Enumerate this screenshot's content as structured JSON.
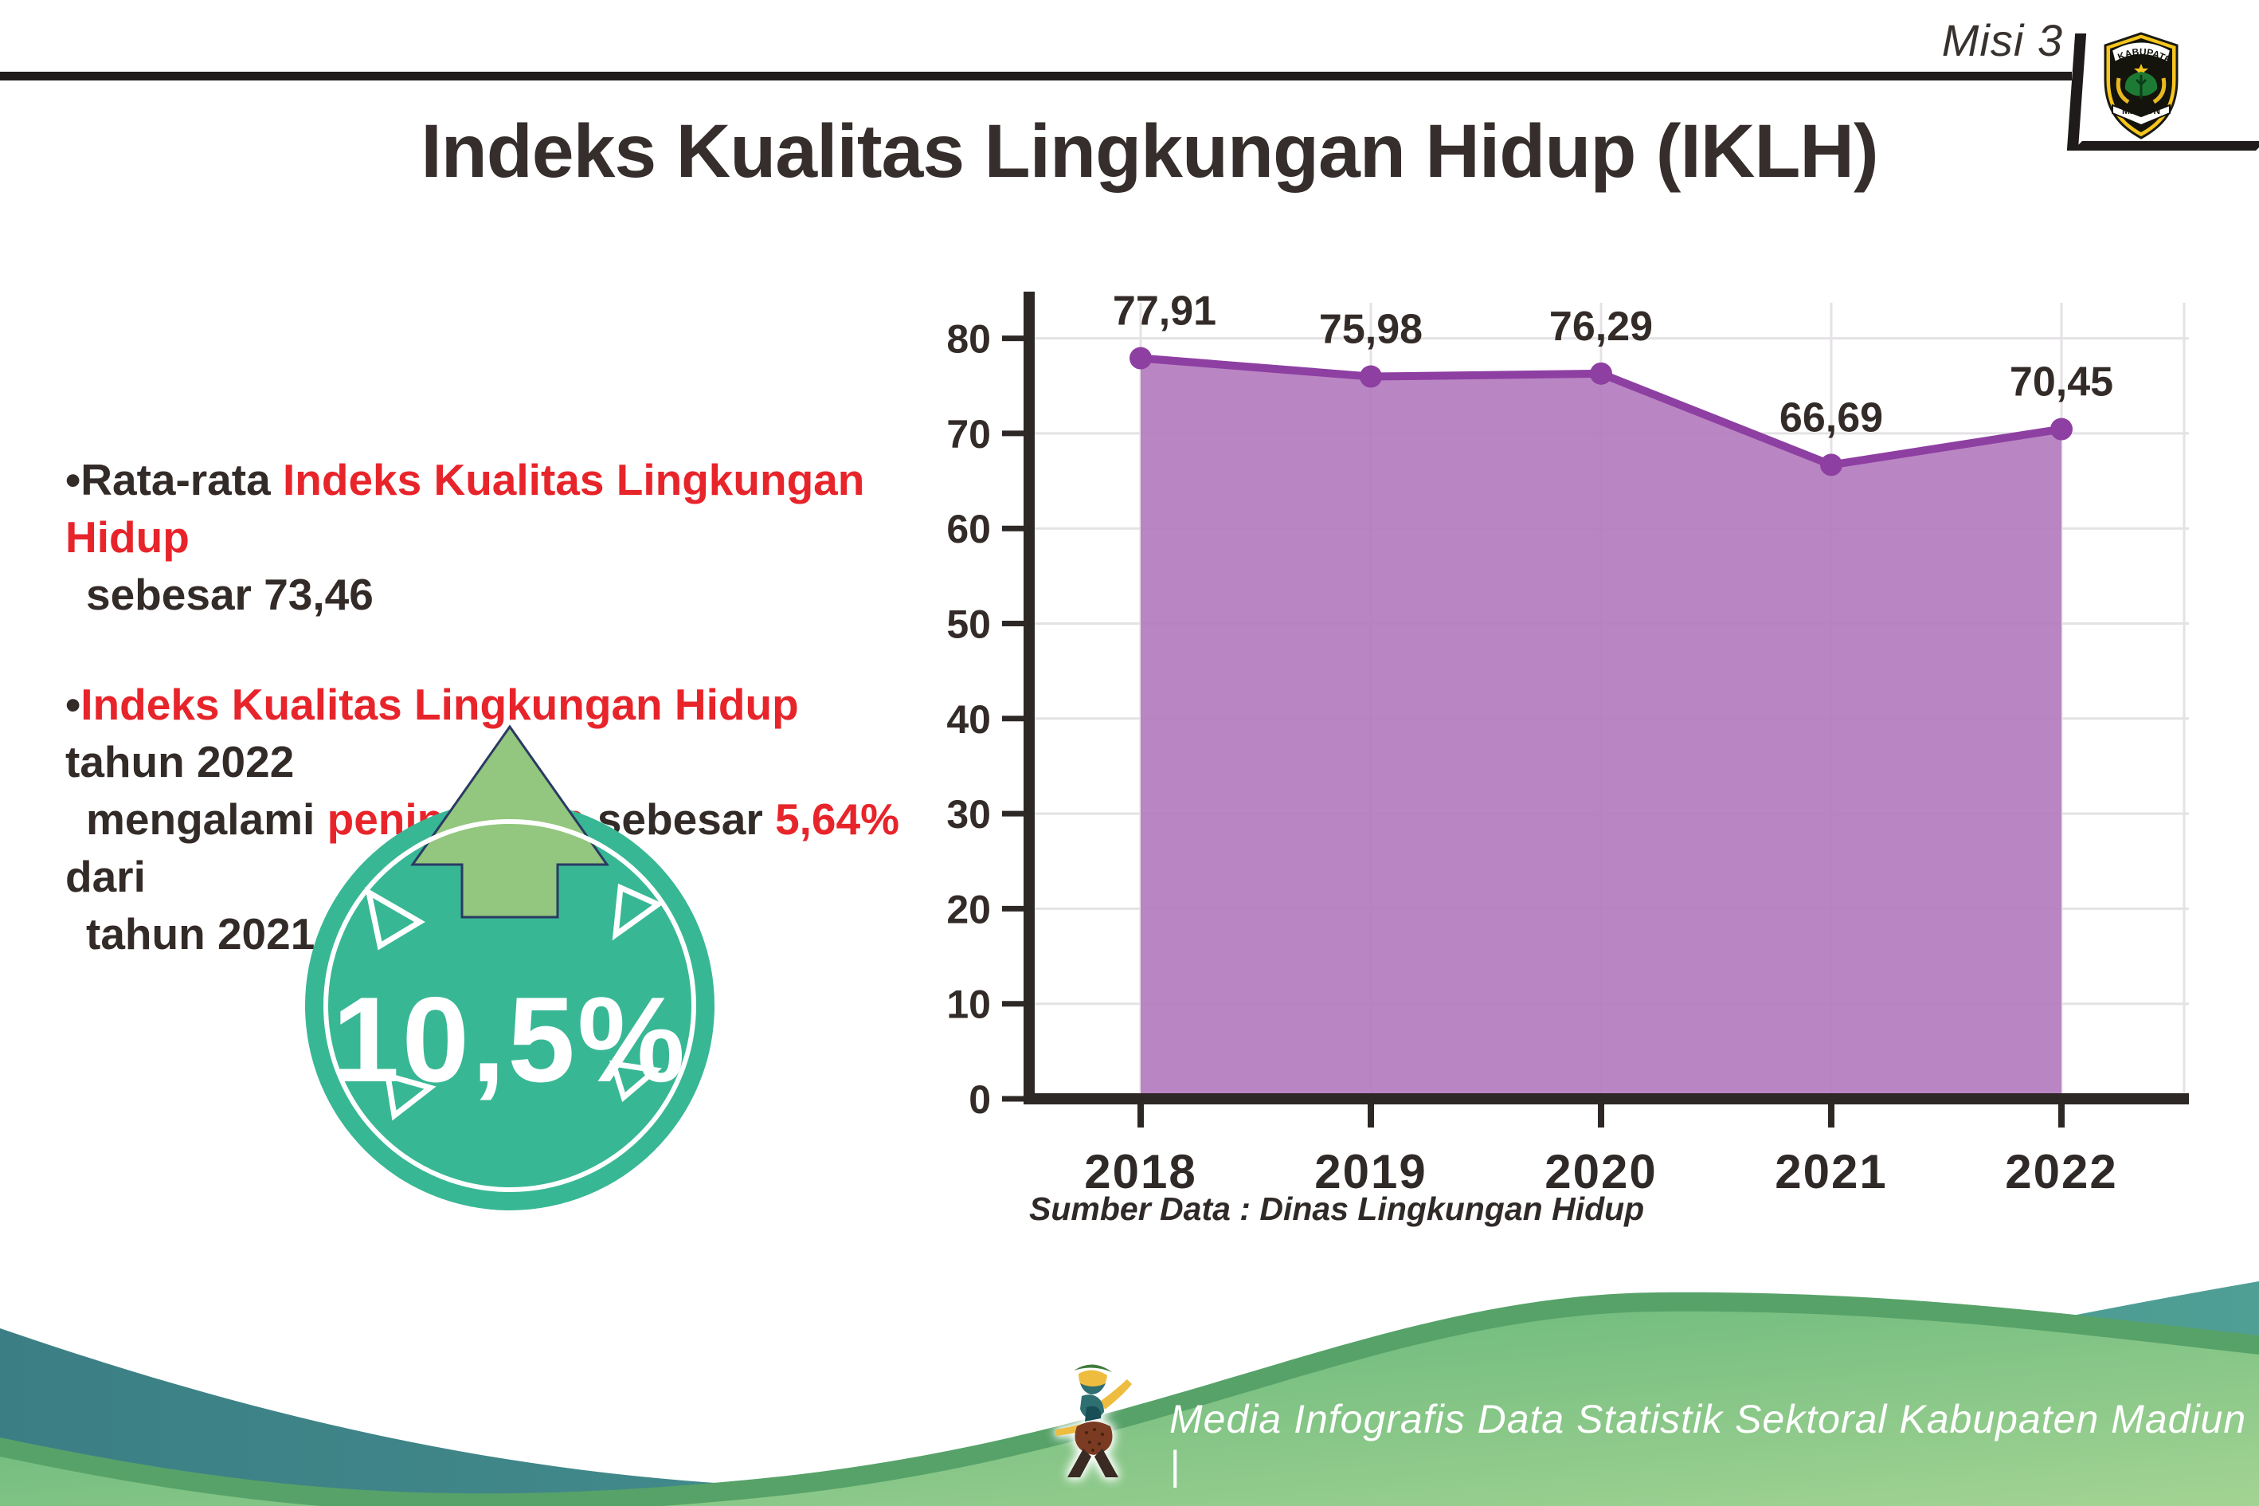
{
  "header": {
    "misi_label": "Misi 3",
    "logo_top": "KABUPATEN",
    "logo_bottom": "MADIUN"
  },
  "title": "Indeks Kualitas Lingkungan Hidup (IKLH)",
  "bullets": {
    "b1": [
      {
        "t": "•Rata-rata ",
        "c": "dark"
      },
      {
        "t": "Indeks Kualitas Lingkungan Hidup",
        "c": "red"
      },
      {
        "br": true
      },
      {
        "t": "sebesar 73,46",
        "c": "dark",
        "ind": true
      }
    ],
    "b2": [
      {
        "t": "•",
        "c": "dark"
      },
      {
        "t": "Indeks Kualitas Lingkungan Hidup",
        "c": "red"
      },
      {
        "t": " tahun 2022",
        "c": "dark"
      },
      {
        "br": true
      },
      {
        "t": "mengalami ",
        "c": "dark",
        "ind": true
      },
      {
        "t": "peningkatan",
        "c": "red"
      },
      {
        "t": " sebesar ",
        "c": "dark"
      },
      {
        "t": "5,64%",
        "c": "red"
      },
      {
        "t": " dari",
        "c": "dark"
      },
      {
        "br": true
      },
      {
        "t": "tahun 2021",
        "c": "dark",
        "ind": true
      }
    ]
  },
  "badge": {
    "value": "10,5%",
    "circle_color": "#38b795",
    "arrow_color": "#93c67e"
  },
  "chart_data": {
    "type": "area",
    "title": "",
    "xlabel": "",
    "ylabel": "",
    "categories": [
      "2018",
      "2019",
      "2020",
      "2021",
      "2022"
    ],
    "values": [
      77.91,
      75.98,
      76.29,
      66.69,
      70.45
    ],
    "labels": [
      "77,91",
      "75,98",
      "76,29",
      "66,69",
      "70,45"
    ],
    "yticks": [
      0,
      10,
      20,
      30,
      40,
      50,
      60,
      70,
      80
    ],
    "ylim": [
      0,
      85
    ],
    "grid": "on",
    "legend": "none",
    "fill_color": "#b37cbe",
    "line_color": "#8e3fa2",
    "axis_color": "#2d2826",
    "grid_color": "#e5e2e5",
    "label_color": "#332b28"
  },
  "source_note": "Sumber Data : Dinas Lingkungan Hidup",
  "footer": {
    "text": "Media Infografis Data Statistik Sektoral Kabupaten Madiun |",
    "teal_color": "#3d8588",
    "green_color": "#6fbc81"
  }
}
